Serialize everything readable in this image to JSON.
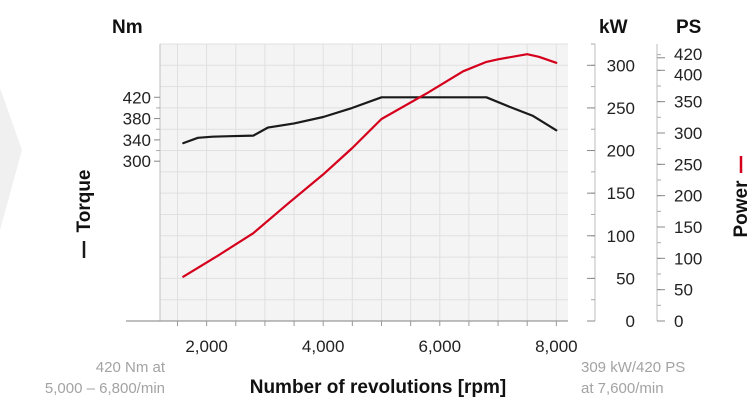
{
  "chart_data": {
    "type": "line",
    "xlabel": "Number of revolutions [rpm]",
    "xlim": [
      1200,
      8200
    ],
    "x_ticks": [
      2000,
      4000,
      6000,
      8000
    ],
    "x_tick_labels": [
      "2,000",
      "4,000",
      "6,000",
      "8,000"
    ],
    "grid": true,
    "axes": {
      "torque": {
        "unit": "Nm",
        "side_label": "Torque",
        "range": [
          0,
          520
        ],
        "ticks": [
          300,
          340,
          380,
          420
        ],
        "tick_labels": [
          "300",
          "340",
          "380",
          "420"
        ]
      },
      "kw": {
        "unit": "kW",
        "range": [
          0,
          325
        ],
        "ticks": [
          0,
          50,
          100,
          150,
          200,
          250,
          300
        ],
        "tick_labels": [
          "0",
          "50",
          "100",
          "150",
          "200",
          "250",
          "300"
        ]
      },
      "ps": {
        "unit": "PS",
        "side_label": "Power",
        "range": [
          0,
          442
        ],
        "ticks": [
          0,
          50,
          100,
          150,
          200,
          250,
          300,
          350,
          400,
          420
        ],
        "tick_labels": [
          "0",
          "50",
          "100",
          "150",
          "200",
          "250",
          "300",
          "350",
          "400",
          "420"
        ]
      }
    },
    "series": [
      {
        "name": "Torque",
        "axis": "torque",
        "color": "#1a1a1a",
        "points": [
          [
            1600,
            334
          ],
          [
            1850,
            344
          ],
          [
            2100,
            346
          ],
          [
            2400,
            347
          ],
          [
            2800,
            348
          ],
          [
            3050,
            363
          ],
          [
            3500,
            371
          ],
          [
            4000,
            383
          ],
          [
            4500,
            400
          ],
          [
            5000,
            420
          ],
          [
            6800,
            420
          ],
          [
            7200,
            402
          ],
          [
            7600,
            385
          ],
          [
            8000,
            358
          ]
        ]
      },
      {
        "name": "Power",
        "axis": "kw",
        "color": "#d5001c",
        "points": [
          [
            1600,
            52
          ],
          [
            2200,
            77
          ],
          [
            2800,
            103
          ],
          [
            3400,
            138
          ],
          [
            4000,
            172
          ],
          [
            4500,
            203
          ],
          [
            5000,
            237
          ],
          [
            5800,
            268
          ],
          [
            6400,
            293
          ],
          [
            6800,
            304
          ],
          [
            7000,
            307
          ],
          [
            7500,
            313
          ],
          [
            7700,
            310
          ],
          [
            8000,
            303
          ]
        ]
      }
    ],
    "annotations": [
      {
        "name": "torque-note",
        "lines": [
          "420 Nm at",
          "5,000 – 6,800/min"
        ]
      },
      {
        "name": "power-note",
        "lines": [
          "309 kW/420 PS",
          "at 7,600/min"
        ]
      }
    ]
  }
}
